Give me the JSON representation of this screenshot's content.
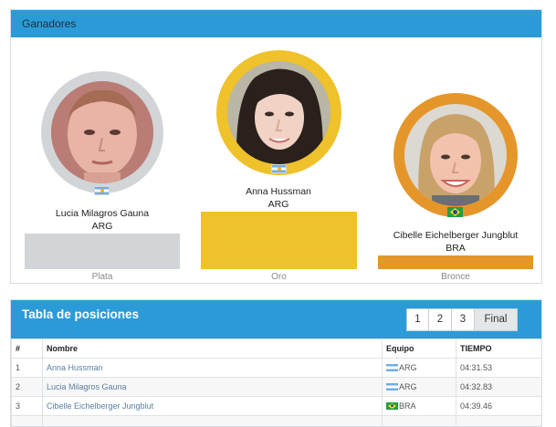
{
  "winners_panel": {
    "title": "Ganadores",
    "silver": {
      "name": "Lucia Milagros Gauna",
      "country": "ARG",
      "flag": "argentina-flag-icon",
      "label": "Plata",
      "ring_color": "#d2d5d8",
      "block_color": "#d2d5d8"
    },
    "gold": {
      "name": "Anna Hussman",
      "country": "ARG",
      "flag": "argentina-flag-icon",
      "label": "Oro",
      "ring_color": "#efc12a",
      "block_color": "#efc12a"
    },
    "bronze": {
      "name": "Cibelle Eichelberger Jungblut",
      "country": "BRA",
      "flag": "brazil-flag-icon",
      "label": "Bronce",
      "ring_color": "#e5962a",
      "block_color": "#e5962a"
    }
  },
  "standings": {
    "title": "Tabla de posiciones",
    "pager": [
      "1",
      "2",
      "3",
      "Final"
    ],
    "active_page": "Final",
    "columns": [
      "#",
      "Nombre",
      "Equipo",
      "TIEMPO"
    ],
    "rows": [
      {
        "pos": "1",
        "name": "Anna Hussman",
        "team": "ARG",
        "time": "04:31.53"
      },
      {
        "pos": "2",
        "name": "Lucia Milagros Gauna",
        "team": "ARG",
        "time": "04:32.83"
      },
      {
        "pos": "3",
        "name": "Cibelle Eichelberger Jungblut",
        "team": "BRA",
        "time": "04:39.46"
      }
    ]
  },
  "colors": {
    "header_blue": "#2b9bd8",
    "link": "#5b7ea0"
  }
}
